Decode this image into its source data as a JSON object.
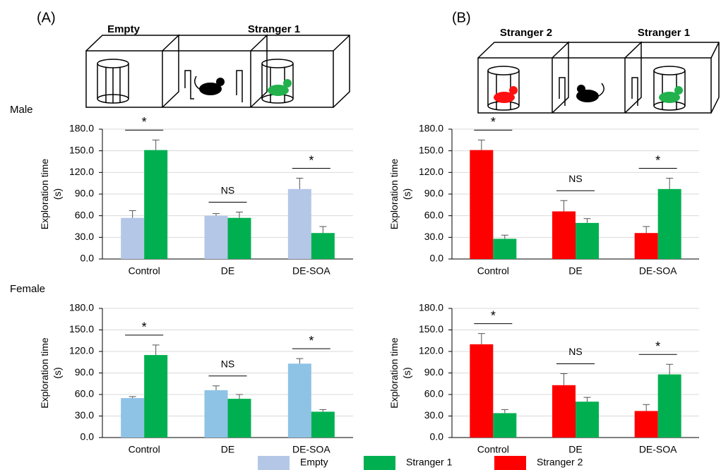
{
  "panels": [
    "(A)",
    "(B)"
  ],
  "rows": [
    "Male",
    "Female"
  ],
  "illustrations": {
    "A": [
      "Empty",
      "Stranger 1"
    ],
    "B": [
      "Stranger 2",
      "Stranger 1"
    ]
  },
  "legend": [
    {
      "name": "Empty",
      "color": "#b4c7e7"
    },
    {
      "name": "Stranger 1",
      "color": "#00b050"
    },
    {
      "name": "Stranger 2",
      "color": "#ff0000"
    }
  ],
  "chart_data": [
    {
      "type": "bar",
      "y_label": [
        "Exploration time",
        "(s)"
      ],
      "categories": [
        "Control",
        "DE",
        "DE-SOA"
      ],
      "series": [
        {
          "name": "Empty",
          "color": "#b4c7e7",
          "values": [
            57,
            60,
            97
          ],
          "errors": [
            10,
            3,
            15
          ]
        },
        {
          "name": "Stranger 1",
          "color": "#00b050",
          "values": [
            151,
            57,
            36
          ],
          "errors": [
            14,
            8,
            9
          ]
        }
      ],
      "annotations": [
        "*",
        "NS",
        "*"
      ],
      "ylim": [
        0,
        180
      ],
      "yticks": [
        {
          "value": 0,
          "label": "0.0"
        },
        {
          "value": 30,
          "label": "30.0"
        },
        {
          "value": 60,
          "label": "60.0"
        },
        {
          "value": 90,
          "label": "90.0"
        },
        {
          "value": 120,
          "label": "120.0"
        },
        {
          "value": 150,
          "label": "150.0"
        },
        {
          "value": 180,
          "label": "180.0"
        }
      ],
      "grid": true
    },
    {
      "type": "bar",
      "y_label": [
        "Exploration time",
        "(s)"
      ],
      "categories": [
        "Control",
        "DE",
        "DE-SOA"
      ],
      "series": [
        {
          "name": "Stranger 2",
          "color": "#ff0000",
          "values": [
            151,
            66,
            36
          ],
          "errors": [
            14,
            15,
            9
          ]
        },
        {
          "name": "Stranger 1",
          "color": "#00b050",
          "values": [
            28,
            50,
            97
          ],
          "errors": [
            5,
            6,
            15
          ]
        }
      ],
      "annotations": [
        "*",
        "NS",
        "*"
      ],
      "ylim": [
        0,
        180
      ],
      "yticks": [
        {
          "value": 0,
          "label": "0.0"
        },
        {
          "value": 30,
          "label": "30.0"
        },
        {
          "value": 60,
          "label": "60.0"
        },
        {
          "value": 90,
          "label": "90.0"
        },
        {
          "value": 120,
          "label": "120.0"
        },
        {
          "value": 150,
          "label": "150.0"
        },
        {
          "value": 180,
          "label": "180.0"
        }
      ],
      "grid": true
    },
    {
      "type": "bar",
      "y_label": [
        "Exploration time",
        "(s)"
      ],
      "categories": [
        "Control",
        "DE",
        "DE-SOA"
      ],
      "series": [
        {
          "name": "Empty",
          "color": "#8ec3e6",
          "values": [
            55,
            66,
            103
          ],
          "errors": [
            2,
            6,
            7
          ]
        },
        {
          "name": "Stranger 1",
          "color": "#00b050",
          "values": [
            115,
            54,
            36
          ],
          "errors": [
            14,
            6,
            3
          ]
        }
      ],
      "annotations": [
        "*",
        "NS",
        "*"
      ],
      "ylim": [
        0,
        180
      ],
      "yticks": [
        {
          "value": 0,
          "label": "0.0"
        },
        {
          "value": 30,
          "label": "30.0"
        },
        {
          "value": 60,
          "label": "60.0"
        },
        {
          "value": 90,
          "label": "90.0"
        },
        {
          "value": 120,
          "label": "120.0"
        },
        {
          "value": 150,
          "label": "150.0"
        },
        {
          "value": 180,
          "label": "180.0"
        }
      ],
      "grid": true
    },
    {
      "type": "bar",
      "y_label": [
        "Exploration time",
        "(s)"
      ],
      "categories": [
        "Control",
        "DE",
        "DE-SOA"
      ],
      "series": [
        {
          "name": "Stranger 2",
          "color": "#ff0000",
          "values": [
            130,
            73,
            37
          ],
          "errors": [
            15,
            16,
            9
          ]
        },
        {
          "name": "Stranger 1",
          "color": "#00b050",
          "values": [
            34,
            50,
            88
          ],
          "errors": [
            5,
            6,
            14
          ]
        }
      ],
      "annotations": [
        "*",
        "NS",
        "*"
      ],
      "ylim": [
        0,
        180
      ],
      "yticks": [
        {
          "value": 0,
          "label": "0.0"
        },
        {
          "value": 30,
          "label": "30.0"
        },
        {
          "value": 60,
          "label": "60.0"
        },
        {
          "value": 90,
          "label": "90.0"
        },
        {
          "value": 120,
          "label": "120.0"
        },
        {
          "value": 150,
          "label": "150.0"
        },
        {
          "value": 180,
          "label": "180.0"
        }
      ],
      "grid": true
    }
  ]
}
